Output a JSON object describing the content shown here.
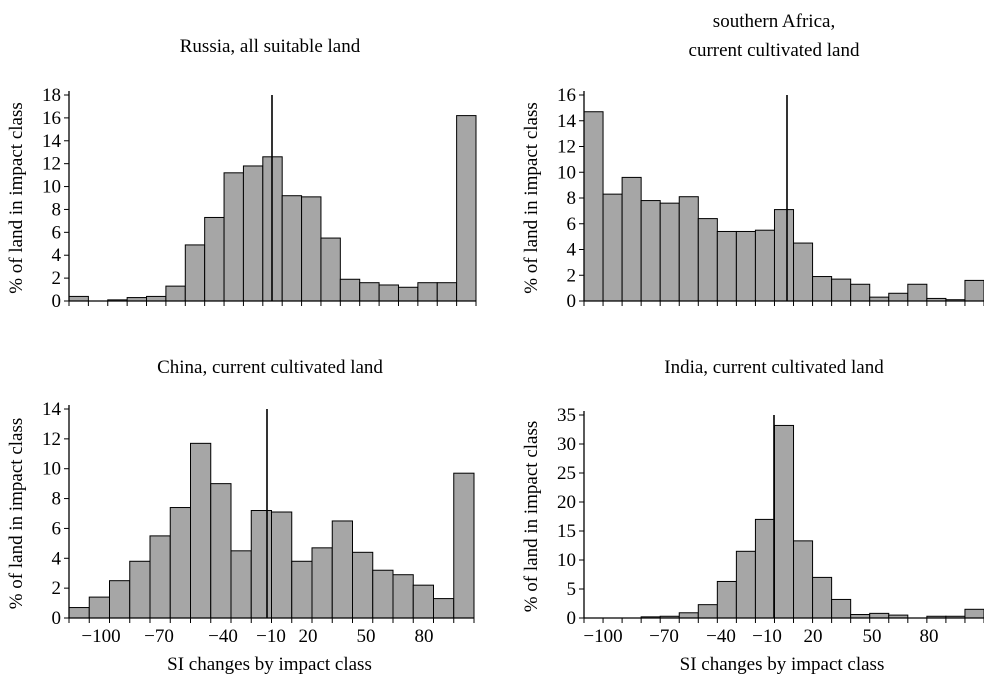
{
  "chart_data": [
    {
      "type": "bar",
      "title": "Russia, all suitable land",
      "xlabel": "",
      "ylabel": "% of land in impact class",
      "ylim": [
        0,
        18
      ],
      "yticks": [
        "0",
        "2",
        "4",
        "6",
        "8",
        "10",
        "12",
        "14",
        "16",
        "18"
      ],
      "xticklabels": [],
      "values": [
        0.4,
        0.0,
        0.1,
        0.3,
        0.4,
        1.3,
        4.9,
        7.3,
        11.2,
        11.8,
        12.6,
        9.2,
        9.1,
        5.5,
        1.9,
        1.6,
        1.4,
        1.2,
        1.6,
        1.6,
        16.2
      ],
      "reference_line": 18
    },
    {
      "type": "bar",
      "title": "southern Africa, current cultivated land",
      "title_lines": [
        "southern Africa,",
        "current cultivated land"
      ],
      "xlabel": "",
      "ylabel": "% of land in impact class",
      "ylim": [
        0,
        16
      ],
      "yticks": [
        "0",
        "2",
        "4",
        "6",
        "8",
        "10",
        "12",
        "14",
        "16"
      ],
      "xticklabels": [],
      "values": [
        14.7,
        8.3,
        9.6,
        7.8,
        7.6,
        8.1,
        6.4,
        5.4,
        5.4,
        5.5,
        7.1,
        4.5,
        1.9,
        1.7,
        1.3,
        0.3,
        0.6,
        1.3,
        0.2,
        0.1,
        1.6
      ],
      "reference_line": 16
    },
    {
      "type": "bar",
      "title": "China, current cultivated land",
      "xlabel": "SI changes by impact class",
      "ylabel": "% of land in impact class",
      "ylim": [
        0,
        14
      ],
      "yticks": [
        "0",
        "2",
        "4",
        "6",
        "8",
        "10",
        "12",
        "14"
      ],
      "xticklabels": [
        "−100",
        "−70",
        "−40",
        "−10",
        "20",
        "50",
        "80"
      ],
      "values": [
        0.7,
        1.4,
        2.5,
        3.8,
        5.5,
        7.4,
        11.7,
        9.0,
        4.5,
        7.2,
        7.1,
        3.8,
        4.7,
        6.5,
        4.4,
        3.2,
        2.9,
        2.2,
        1.3,
        9.7
      ],
      "reference_line": 14
    },
    {
      "type": "bar",
      "title": "India, current cultivated land",
      "xlabel": "SI changes by impact class",
      "ylabel": "% of land in impact class",
      "ylim": [
        0,
        35
      ],
      "yticks": [
        "0",
        "5",
        "10",
        "15",
        "20",
        "25",
        "30",
        "35"
      ],
      "xticklabels": [
        "−100",
        "−70",
        "−40",
        "−10",
        "20",
        "50",
        "80"
      ],
      "values": [
        0.0,
        0.0,
        0.0,
        0.2,
        0.3,
        0.9,
        2.3,
        6.3,
        11.5,
        17.0,
        33.2,
        13.3,
        7.0,
        3.2,
        0.6,
        0.8,
        0.5,
        0.0,
        0.3,
        0.3,
        1.5
      ],
      "reference_line": 35
    }
  ]
}
